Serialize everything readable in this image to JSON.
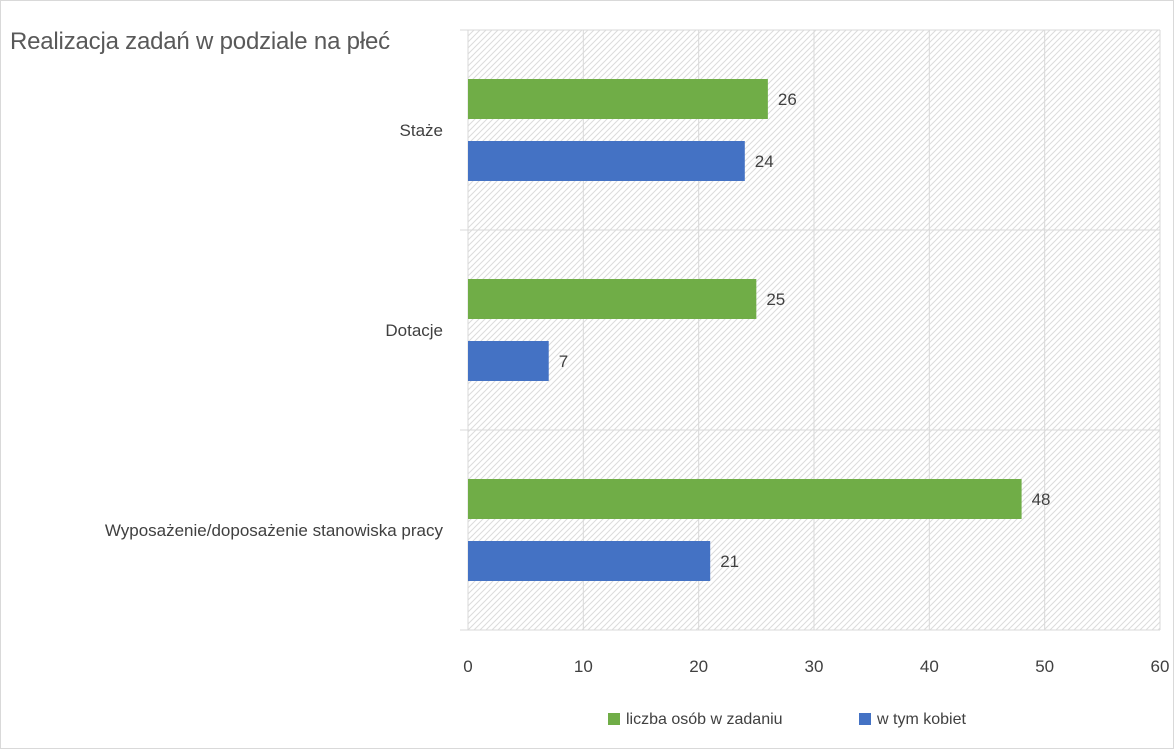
{
  "chart_data": {
    "type": "bar",
    "orientation": "horizontal",
    "title": "Realizacja zadań w podziale na płeć",
    "categories": [
      "Staże",
      "Dotacje",
      "Wyposażenie/doposażenie stanowiska pracy"
    ],
    "series": [
      {
        "name": "liczba osób w zadaniu",
        "color": "#70ad47",
        "values": [
          26,
          25,
          48
        ]
      },
      {
        "name": "w tym kobiet",
        "color": "#4472c4",
        "values": [
          24,
          7,
          21
        ]
      }
    ],
    "xlim": [
      0,
      60
    ],
    "xticks": [
      "0",
      "10",
      "20",
      "30",
      "40",
      "50",
      "60"
    ],
    "grid": true,
    "data_labels": true,
    "legend_position": "bottom",
    "plot_background": "diagonal-hatch"
  }
}
